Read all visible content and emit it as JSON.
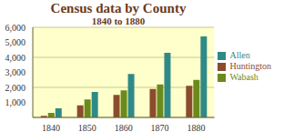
{
  "chart_data": {
    "type": "bar",
    "title": "Census data by County",
    "subtitle": "1840 to 1880",
    "categories": [
      "1840",
      "1850",
      "1860",
      "1870",
      "1880"
    ],
    "series": [
      {
        "name": "Huntington",
        "color": "#8b4b2d",
        "values": [
          100,
          800,
          1500,
          1900,
          2100
        ]
      },
      {
        "name": "Wabash",
        "color": "#6b8a1c",
        "values": [
          300,
          1200,
          1800,
          2200,
          2500
        ]
      },
      {
        "name": "Allen",
        "color": "#2f8a86",
        "values": [
          600,
          1700,
          2900,
          4300,
          5400
        ]
      }
    ],
    "ylim": [
      0,
      6000
    ],
    "yticks": [
      {
        "value": 1000,
        "label": "1,000"
      },
      {
        "value": 2000,
        "label": "2,000"
      },
      {
        "value": 3000,
        "label": "3,000"
      },
      {
        "value": 4000,
        "label": "4,000"
      },
      {
        "value": 5000,
        "label": "5,000"
      },
      {
        "value": 6000,
        "label": "6,000"
      }
    ],
    "grid": true,
    "legend": "right"
  }
}
